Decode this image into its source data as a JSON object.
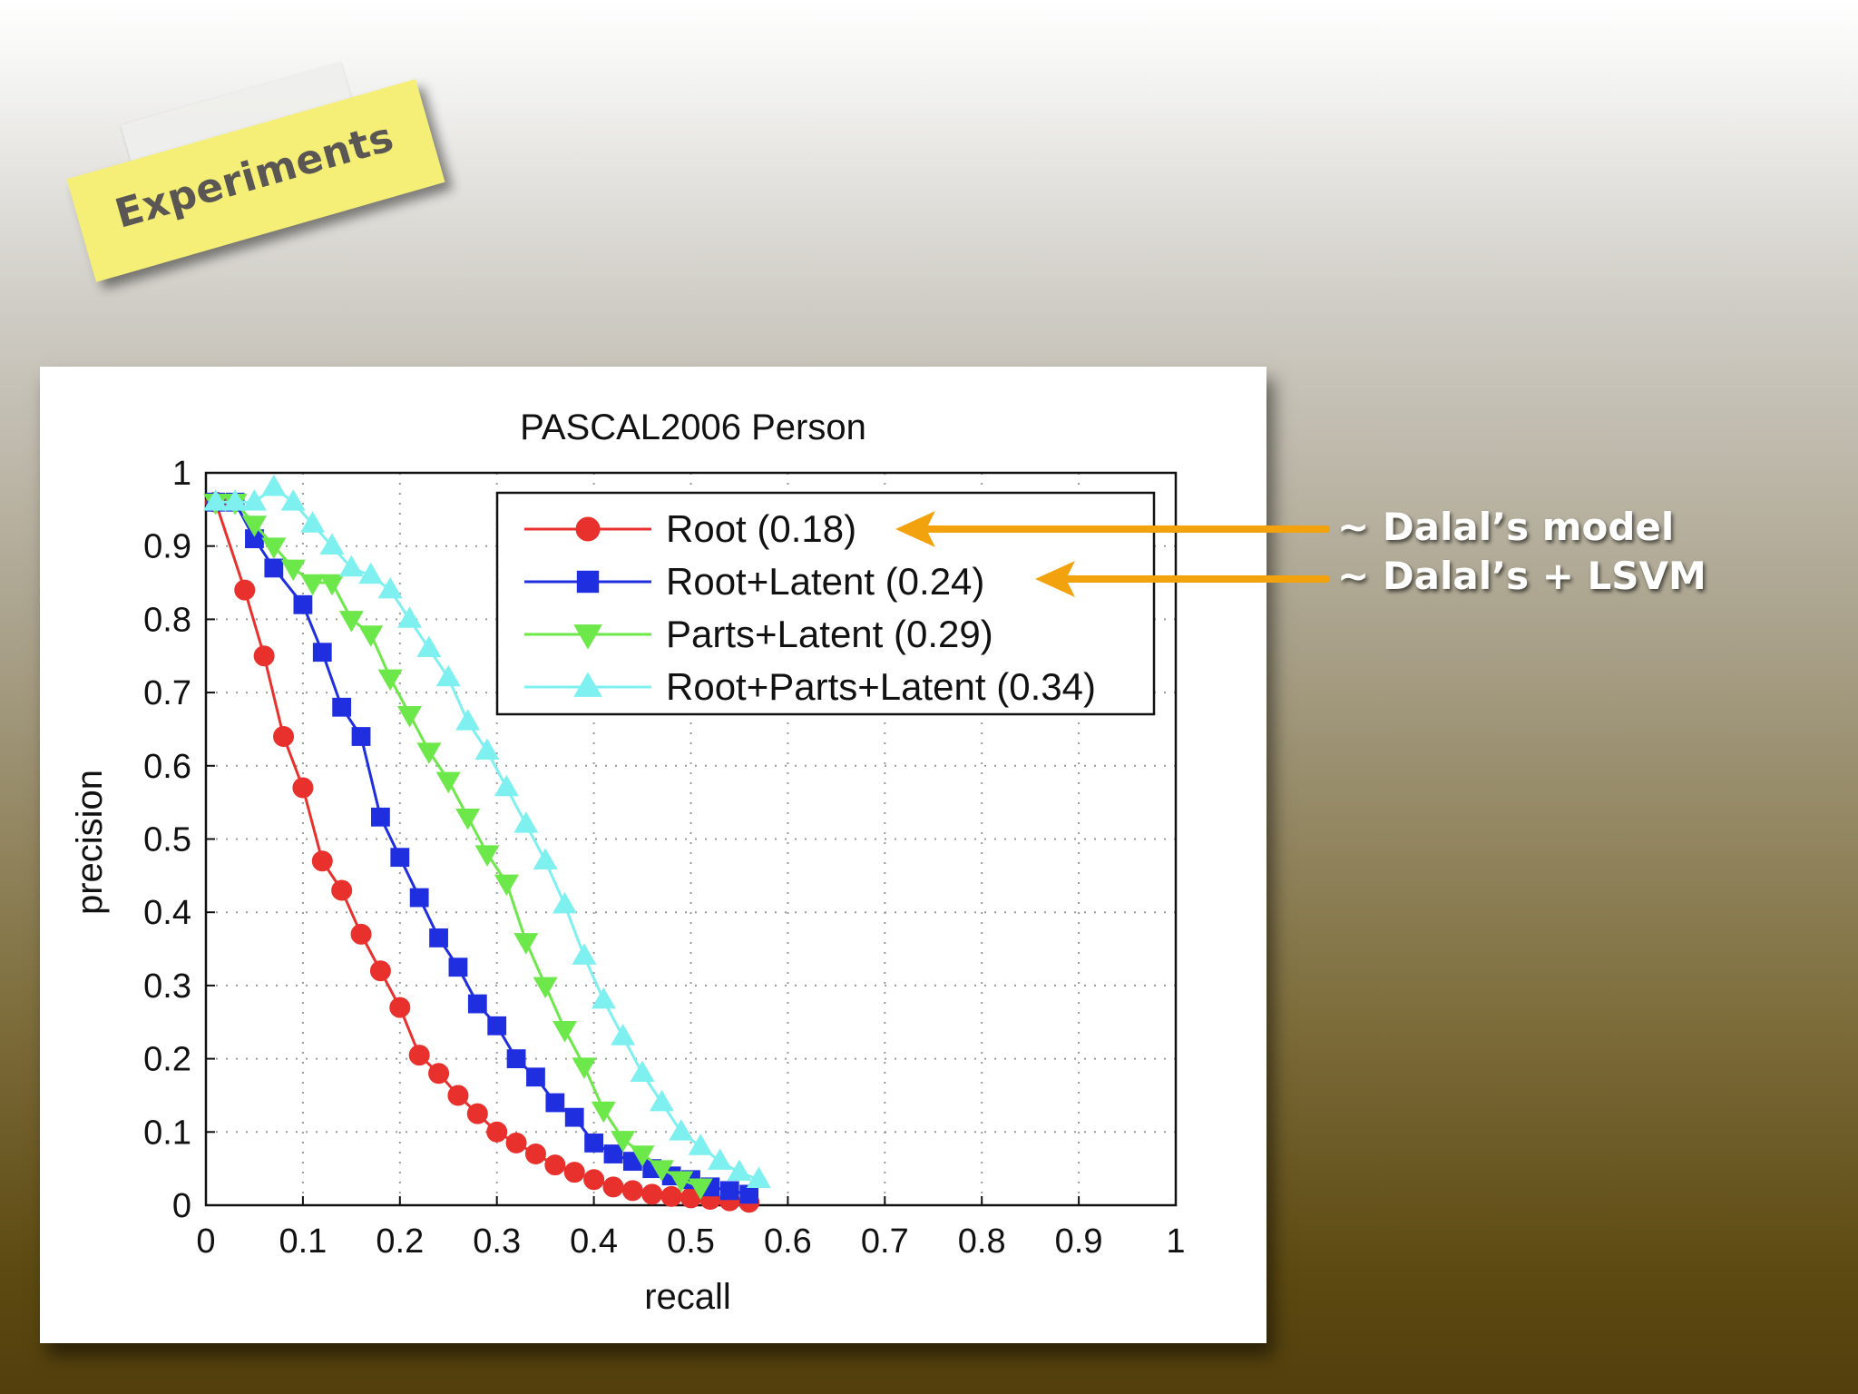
{
  "slide": {
    "section_label": "Experiments",
    "callouts": [
      {
        "text": "~ Dalal’s model",
        "target_series": "Root (0.18)",
        "color": "#f2a20c"
      },
      {
        "text": "~ Dalal’s + LSVM",
        "target_series": "Root+Latent (0.24)",
        "color": "#f2a20c"
      }
    ]
  },
  "chart_data": {
    "type": "line",
    "title": "PASCAL2006 Person",
    "xlabel": "recall",
    "ylabel": "precision",
    "xlim": [
      0,
      1
    ],
    "ylim": [
      0,
      1
    ],
    "xticks": [
      "0",
      "0.1",
      "0.2",
      "0.3",
      "0.4",
      "0.5",
      "0.6",
      "0.7",
      "0.8",
      "0.9",
      "1"
    ],
    "yticks": [
      "0",
      "0.1",
      "0.2",
      "0.3",
      "0.4",
      "0.5",
      "0.6",
      "0.7",
      "0.8",
      "0.9",
      "1"
    ],
    "grid": true,
    "legend_position": "top-right",
    "series": [
      {
        "name": "Root (0.18)",
        "color": "#e8312c",
        "marker": "circle",
        "x": [
          0.01,
          0.04,
          0.06,
          0.08,
          0.1,
          0.12,
          0.14,
          0.16,
          0.18,
          0.2,
          0.22,
          0.24,
          0.26,
          0.28,
          0.3,
          0.32,
          0.34,
          0.36,
          0.38,
          0.4,
          0.42,
          0.44,
          0.46,
          0.48,
          0.5,
          0.52,
          0.54,
          0.56
        ],
        "y": [
          0.96,
          0.84,
          0.75,
          0.64,
          0.57,
          0.47,
          0.43,
          0.37,
          0.32,
          0.27,
          0.205,
          0.18,
          0.15,
          0.125,
          0.1,
          0.085,
          0.07,
          0.055,
          0.045,
          0.035,
          0.025,
          0.02,
          0.015,
          0.012,
          0.01,
          0.008,
          0.006,
          0.004
        ]
      },
      {
        "name": "Root+Latent (0.24)",
        "color": "#1f2fe0",
        "marker": "square",
        "x": [
          0.01,
          0.03,
          0.05,
          0.07,
          0.1,
          0.12,
          0.14,
          0.16,
          0.18,
          0.2,
          0.22,
          0.24,
          0.26,
          0.28,
          0.3,
          0.32,
          0.34,
          0.36,
          0.38,
          0.4,
          0.42,
          0.44,
          0.46,
          0.48,
          0.5,
          0.52,
          0.54,
          0.56
        ],
        "y": [
          0.96,
          0.96,
          0.91,
          0.87,
          0.82,
          0.755,
          0.68,
          0.64,
          0.53,
          0.475,
          0.42,
          0.365,
          0.325,
          0.275,
          0.245,
          0.2,
          0.175,
          0.14,
          0.12,
          0.085,
          0.07,
          0.06,
          0.05,
          0.04,
          0.035,
          0.025,
          0.02,
          0.015
        ]
      },
      {
        "name": "Parts+Latent (0.29)",
        "color": "#6de84a",
        "marker": "triangle-down",
        "x": [
          0.01,
          0.03,
          0.05,
          0.07,
          0.09,
          0.11,
          0.13,
          0.15,
          0.17,
          0.19,
          0.21,
          0.23,
          0.25,
          0.27,
          0.29,
          0.31,
          0.33,
          0.35,
          0.37,
          0.39,
          0.41,
          0.43,
          0.45,
          0.47,
          0.49,
          0.51
        ],
        "y": [
          0.96,
          0.96,
          0.93,
          0.9,
          0.87,
          0.85,
          0.85,
          0.8,
          0.78,
          0.72,
          0.67,
          0.62,
          0.58,
          0.53,
          0.48,
          0.44,
          0.36,
          0.3,
          0.24,
          0.19,
          0.13,
          0.09,
          0.07,
          0.05,
          0.035,
          0.025
        ]
      },
      {
        "name": "Root+Parts+Latent (0.34)",
        "color": "#7ff0f0",
        "marker": "triangle-up",
        "x": [
          0.01,
          0.03,
          0.05,
          0.07,
          0.09,
          0.11,
          0.13,
          0.15,
          0.17,
          0.19,
          0.21,
          0.23,
          0.25,
          0.27,
          0.29,
          0.31,
          0.33,
          0.35,
          0.37,
          0.39,
          0.41,
          0.43,
          0.45,
          0.47,
          0.49,
          0.51,
          0.53,
          0.55,
          0.57
        ],
        "y": [
          0.96,
          0.96,
          0.96,
          0.98,
          0.96,
          0.93,
          0.9,
          0.87,
          0.86,
          0.84,
          0.8,
          0.76,
          0.72,
          0.66,
          0.62,
          0.57,
          0.52,
          0.47,
          0.41,
          0.34,
          0.28,
          0.23,
          0.18,
          0.14,
          0.1,
          0.08,
          0.06,
          0.045,
          0.035
        ]
      }
    ]
  }
}
